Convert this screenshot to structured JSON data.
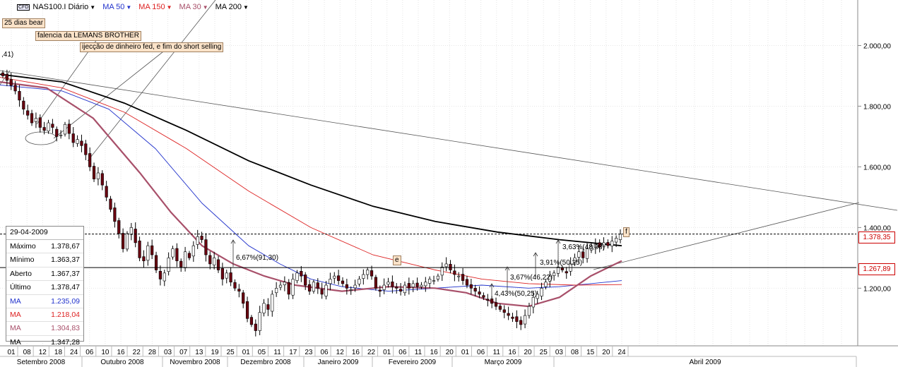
{
  "toolbar": {
    "symbol_badge": "CFD",
    "symbol": "NAS100.I Diário",
    "indicators": [
      {
        "label": "MA 50",
        "color": "#2233cc"
      },
      {
        "label": "MA 150",
        "color": "#dd2222"
      },
      {
        "label": "MA 30",
        "color": "#a8506a"
      },
      {
        "label": "MA 200",
        "color": "#000000"
      }
    ]
  },
  "info_box": {
    "date": "29-04-2009",
    "rows": [
      {
        "label": "Máximo",
        "value": "1.378,67",
        "color": "#000000"
      },
      {
        "label": "Mínimo",
        "value": "1.363,37",
        "color": "#000000"
      },
      {
        "label": "Aberto",
        "value": "1.367,37",
        "color": "#000000"
      },
      {
        "label": "Último",
        "value": "1.378,47",
        "color": "#000000"
      },
      {
        "label": "MA",
        "value": "1.235,09",
        "color": "#2233cc"
      },
      {
        "label": "MA",
        "value": "1.218,04",
        "color": "#dd2222"
      },
      {
        "label": "MA",
        "value": "1.304,83",
        "color": "#a8506a"
      },
      {
        "label": "MA",
        "value": "1.347,28",
        "color": "#000000"
      }
    ]
  },
  "annotations": {
    "bear": "25 dias bear",
    "lehman": "falencia da LEMANS BROTHER",
    "fed": "ijecção de dinheiro fed, e fim do short selling",
    "left_value": ",41)",
    "pct1": "6,67%(91,30)",
    "pct2": "4,43%(50,25)",
    "pct3": "3,67%(46,22)",
    "pct4": "3,91%(50,25)",
    "pct5": "3,63%(48,98)",
    "marker_e": "e",
    "marker_f": "f"
  },
  "price_tags": {
    "last": "1.378,35",
    "support": "1.267,89"
  },
  "chart_data": {
    "type": "candlestick",
    "symbol": "NAS100.I",
    "period": "Diário",
    "ylim": [
      1010,
      2150
    ],
    "y_ticks": [
      {
        "value": 2000,
        "label": "2.000,00"
      },
      {
        "value": 1800,
        "label": "1.800,00"
      },
      {
        "value": 1600,
        "label": "1.600,00"
      },
      {
        "value": 1400,
        "label": "1.400,00"
      },
      {
        "value": 1200,
        "label": "1.200,00"
      }
    ],
    "date_ticks": [
      "01",
      "08",
      "12",
      "18",
      "24",
      "06",
      "10",
      "16",
      "22",
      "28",
      "03",
      "07",
      "13",
      "19",
      "25",
      "01",
      "05",
      "11",
      "17",
      "23",
      "06",
      "12",
      "16",
      "22",
      "01",
      "06",
      "11",
      "16",
      "20",
      "01",
      "06",
      "11",
      "16",
      "20",
      "25",
      "03",
      "08",
      "15",
      "20",
      "24"
    ],
    "months": [
      "Setembro 2008",
      "Outubro 2008",
      "Novembro 2008",
      "Dezembro 2008",
      "Janeiro 2009",
      "Fevereiro 2009",
      "Março 2009",
      "Abril 2009"
    ],
    "horizontal_levels": [
      1378.35,
      1267.89
    ],
    "close_series": [
      1900,
      1885,
      1868,
      1850,
      1820,
      1790,
      1770,
      1745,
      1760,
      1730,
      1720,
      1745,
      1730,
      1700,
      1705,
      1740,
      1710,
      1680,
      1690,
      1670,
      1640,
      1600,
      1560,
      1580,
      1540,
      1500,
      1460,
      1420,
      1380,
      1330,
      1380,
      1400,
      1350,
      1300,
      1290,
      1340,
      1310,
      1260,
      1230,
      1250,
      1300,
      1330,
      1290,
      1270,
      1320,
      1300,
      1340,
      1370,
      1360,
      1310,
      1280,
      1300,
      1260,
      1230,
      1250,
      1220,
      1200,
      1190,
      1150,
      1100,
      1080,
      1060,
      1120,
      1150,
      1130,
      1180,
      1200,
      1210,
      1220,
      1180,
      1230,
      1250,
      1240,
      1210,
      1190,
      1220,
      1200,
      1180,
      1210,
      1230,
      1240,
      1225,
      1215,
      1200,
      1195,
      1210,
      1230,
      1245,
      1260,
      1240,
      1200,
      1190,
      1210,
      1220,
      1205,
      1200,
      1190,
      1210,
      1200,
      1215,
      1205,
      1210,
      1220,
      1230,
      1225,
      1240,
      1270,
      1280,
      1260,
      1245,
      1240,
      1225,
      1210,
      1200,
      1190,
      1180,
      1170,
      1160,
      1150,
      1140,
      1130,
      1120,
      1110,
      1100,
      1090,
      1080,
      1110,
      1140,
      1170,
      1180,
      1200,
      1220,
      1240,
      1250,
      1270,
      1260,
      1250,
      1280,
      1300,
      1320,
      1300,
      1330,
      1340,
      1345,
      1335,
      1350,
      1340,
      1355,
      1365,
      1378
    ],
    "ma_series": [
      {
        "name": "MA 50",
        "color": "#2233cc",
        "points": [
          [
            0,
            1870
          ],
          [
            40,
            1850
          ],
          [
            70,
            1790
          ],
          [
            100,
            1660
          ],
          [
            130,
            1480
          ],
          [
            160,
            1340
          ],
          [
            180,
            1280
          ],
          [
            200,
            1230
          ],
          [
            220,
            1205
          ],
          [
            250,
            1190
          ],
          [
            280,
            1200
          ],
          [
            310,
            1210
          ],
          [
            340,
            1200
          ],
          [
            360,
            1205
          ],
          [
            380,
            1215
          ],
          [
            400,
            1225
          ]
        ]
      },
      {
        "name": "MA 150",
        "color": "#dd2222",
        "points": [
          [
            0,
            1895
          ],
          [
            40,
            1860
          ],
          [
            80,
            1780
          ],
          [
            120,
            1660
          ],
          [
            160,
            1520
          ],
          [
            200,
            1400
          ],
          [
            240,
            1310
          ],
          [
            280,
            1260
          ],
          [
            310,
            1230
          ],
          [
            340,
            1215
          ],
          [
            370,
            1210
          ],
          [
            400,
            1212
          ]
        ]
      },
      {
        "name": "MA 30",
        "color": "#a8506a",
        "points": [
          [
            0,
            1880
          ],
          [
            30,
            1860
          ],
          [
            60,
            1760
          ],
          [
            90,
            1580
          ],
          [
            110,
            1450
          ],
          [
            130,
            1340
          ],
          [
            150,
            1280
          ],
          [
            170,
            1240
          ],
          [
            190,
            1210
          ],
          [
            220,
            1190
          ],
          [
            250,
            1205
          ],
          [
            280,
            1200
          ],
          [
            300,
            1185
          ],
          [
            320,
            1150
          ],
          [
            340,
            1140
          ],
          [
            360,
            1170
          ],
          [
            380,
            1240
          ],
          [
            400,
            1290
          ]
        ]
      },
      {
        "name": "MA 200",
        "color": "#000000",
        "points": [
          [
            0,
            1905
          ],
          [
            40,
            1880
          ],
          [
            80,
            1810
          ],
          [
            120,
            1720
          ],
          [
            160,
            1620
          ],
          [
            200,
            1540
          ],
          [
            240,
            1470
          ],
          [
            280,
            1420
          ],
          [
            320,
            1385
          ],
          [
            360,
            1360
          ],
          [
            400,
            1340
          ]
        ]
      }
    ]
  }
}
